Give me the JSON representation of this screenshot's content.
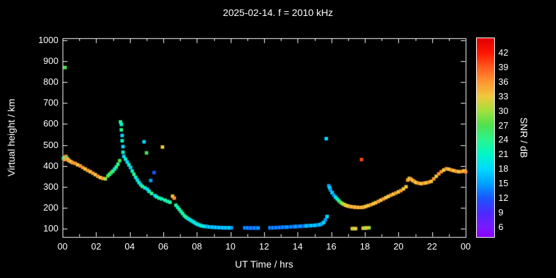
{
  "figure": {
    "background": "#000000",
    "text_color": "#ffffff"
  },
  "chart_data": {
    "type": "scatter",
    "title": "2025-02-14. f = 2010 kHz",
    "xlabel": "UT Time / hrs",
    "ylabel": "Virtual height / km",
    "colorbar_label": "SNR / dB",
    "xlim": [
      0,
      24
    ],
    "ylim": [
      60,
      1010
    ],
    "grid": false,
    "x_major_ticks": [
      0,
      2,
      4,
      6,
      8,
      10,
      12,
      14,
      16,
      18,
      20,
      22,
      24
    ],
    "x_tick_labels": [
      "00",
      "02",
      "04",
      "06",
      "08",
      "10",
      "12",
      "14",
      "16",
      "18",
      "20",
      "22",
      "00"
    ],
    "x_minor_ticks": [
      1,
      3,
      5,
      7,
      9,
      11,
      13,
      15,
      17,
      19,
      21,
      23
    ],
    "y_ticks": [
      100,
      200,
      300,
      400,
      500,
      600,
      700,
      800,
      900,
      1000
    ],
    "y_tick_labels": [
      "100",
      "200",
      "300",
      "400",
      "500",
      "600",
      "700",
      "800",
      "900",
      "1000"
    ],
    "colorbar": {
      "min": 4,
      "max": 45,
      "tick_values": [
        6,
        9,
        12,
        15,
        18,
        21,
        24,
        27,
        30,
        33,
        36,
        39,
        42
      ],
      "anchors": [
        {
          "v": 4,
          "c": "#8a00ff"
        },
        {
          "v": 6,
          "c": "#7a1aff"
        },
        {
          "v": 9,
          "c": "#4b2aff"
        },
        {
          "v": 12,
          "c": "#1a55ff"
        },
        {
          "v": 15,
          "c": "#00a0ff"
        },
        {
          "v": 18,
          "c": "#00d9ff"
        },
        {
          "v": 21,
          "c": "#00f5c8"
        },
        {
          "v": 24,
          "c": "#2af58f"
        },
        {
          "v": 27,
          "c": "#50e050"
        },
        {
          "v": 30,
          "c": "#a0e03c"
        },
        {
          "v": 33,
          "c": "#f0c83c"
        },
        {
          "v": 36,
          "c": "#ff9632"
        },
        {
          "v": 39,
          "c": "#ff5a1e"
        },
        {
          "v": 42,
          "c": "#ff1400"
        },
        {
          "v": 45,
          "c": "#dc0000"
        }
      ]
    },
    "points_schema": [
      "ut_hours",
      "virtual_height_km",
      "snr_db"
    ],
    "points": [
      [
        0.05,
        435,
        21
      ],
      [
        0.1,
        430,
        36
      ],
      [
        0.15,
        870,
        27
      ],
      [
        0.15,
        440,
        33
      ],
      [
        0.2,
        445,
        36
      ],
      [
        0.25,
        438,
        24
      ],
      [
        0.3,
        432,
        36
      ],
      [
        0.35,
        428,
        33
      ],
      [
        0.4,
        424,
        36
      ],
      [
        0.5,
        420,
        33
      ],
      [
        0.6,
        415,
        36
      ],
      [
        0.75,
        412,
        36
      ],
      [
        0.9,
        405,
        33
      ],
      [
        1.05,
        400,
        36
      ],
      [
        1.2,
        392,
        36
      ],
      [
        1.35,
        385,
        33
      ],
      [
        1.5,
        378,
        36
      ],
      [
        1.65,
        372,
        33
      ],
      [
        1.8,
        365,
        36
      ],
      [
        1.95,
        358,
        33
      ],
      [
        2.1,
        350,
        36
      ],
      [
        2.25,
        344,
        33
      ],
      [
        2.4,
        340,
        36
      ],
      [
        2.55,
        338,
        30
      ],
      [
        2.7,
        352,
        27
      ],
      [
        2.8,
        360,
        24
      ],
      [
        2.9,
        368,
        27
      ],
      [
        3.0,
        375,
        24
      ],
      [
        3.1,
        385,
        21
      ],
      [
        3.2,
        395,
        24
      ],
      [
        3.3,
        408,
        24
      ],
      [
        3.4,
        425,
        27
      ],
      [
        3.45,
        610,
        24
      ],
      [
        3.5,
        598,
        21
      ],
      [
        3.5,
        572,
        24
      ],
      [
        3.55,
        545,
        18
      ],
      [
        3.55,
        520,
        21
      ],
      [
        3.6,
        492,
        18
      ],
      [
        3.6,
        465,
        21
      ],
      [
        3.65,
        445,
        18
      ],
      [
        3.75,
        432,
        21
      ],
      [
        3.85,
        418,
        18
      ],
      [
        3.95,
        405,
        21
      ],
      [
        4.05,
        392,
        18
      ],
      [
        4.15,
        375,
        21
      ],
      [
        4.25,
        360,
        24
      ],
      [
        4.35,
        345,
        21
      ],
      [
        4.45,
        332,
        18
      ],
      [
        4.55,
        320,
        21
      ],
      [
        4.65,
        310,
        18
      ],
      [
        4.75,
        302,
        24
      ],
      [
        4.85,
        515,
        18
      ],
      [
        4.9,
        295,
        21
      ],
      [
        5.0,
        462,
        27
      ],
      [
        5.05,
        288,
        18
      ],
      [
        5.15,
        278,
        21
      ],
      [
        5.25,
        330,
        15
      ],
      [
        5.3,
        268,
        24
      ],
      [
        5.45,
        368,
        12
      ],
      [
        5.5,
        258,
        18
      ],
      [
        5.6,
        252,
        21
      ],
      [
        5.75,
        246,
        24
      ],
      [
        5.9,
        242,
        21
      ],
      [
        5.95,
        490,
        33
      ],
      [
        6.1,
        236,
        24
      ],
      [
        6.25,
        230,
        21
      ],
      [
        6.4,
        226,
        24
      ],
      [
        6.55,
        255,
        33
      ],
      [
        6.65,
        246,
        36
      ],
      [
        6.75,
        212,
        24
      ],
      [
        6.85,
        202,
        21
      ],
      [
        6.95,
        192,
        24
      ],
      [
        7.05,
        182,
        21
      ],
      [
        7.15,
        172,
        24
      ],
      [
        7.25,
        162,
        21
      ],
      [
        7.35,
        155,
        24
      ],
      [
        7.45,
        149,
        21
      ],
      [
        7.55,
        144,
        18
      ],
      [
        7.65,
        139,
        21
      ],
      [
        7.75,
        134,
        18
      ],
      [
        7.85,
        129,
        21
      ],
      [
        7.95,
        124,
        18
      ],
      [
        8.05,
        120,
        21
      ],
      [
        8.15,
        117,
        18
      ],
      [
        8.25,
        114,
        21
      ],
      [
        8.35,
        112,
        18
      ],
      [
        8.45,
        111,
        21
      ],
      [
        8.55,
        110,
        18
      ],
      [
        8.65,
        109,
        15
      ],
      [
        8.75,
        108,
        18
      ],
      [
        8.85,
        107,
        15
      ],
      [
        8.95,
        107,
        18
      ],
      [
        9.05,
        106,
        15
      ],
      [
        9.15,
        106,
        18
      ],
      [
        9.25,
        105,
        15
      ],
      [
        9.35,
        105,
        18
      ],
      [
        9.45,
        105,
        15
      ],
      [
        9.55,
        104,
        18
      ],
      [
        9.65,
        104,
        15
      ],
      [
        9.75,
        104,
        18
      ],
      [
        9.85,
        104,
        15
      ],
      [
        9.95,
        104,
        18
      ],
      [
        10.05,
        104,
        15
      ],
      [
        10.85,
        104,
        15
      ],
      [
        10.95,
        104,
        12
      ],
      [
        11.05,
        103,
        15
      ],
      [
        11.15,
        103,
        12
      ],
      [
        11.25,
        103,
        15
      ],
      [
        11.35,
        103,
        12
      ],
      [
        11.45,
        103,
        15
      ],
      [
        11.55,
        103,
        12
      ],
      [
        11.65,
        103,
        15
      ],
      [
        12.35,
        104,
        15
      ],
      [
        12.45,
        104,
        12
      ],
      [
        12.55,
        104,
        15
      ],
      [
        12.65,
        105,
        12
      ],
      [
        12.75,
        105,
        15
      ],
      [
        12.85,
        105,
        12
      ],
      [
        12.95,
        106,
        15
      ],
      [
        13.05,
        106,
        12
      ],
      [
        13.15,
        107,
        15
      ],
      [
        13.25,
        107,
        12
      ],
      [
        13.35,
        107,
        15
      ],
      [
        13.45,
        108,
        15
      ],
      [
        13.55,
        108,
        12
      ],
      [
        13.65,
        109,
        15
      ],
      [
        13.75,
        109,
        12
      ],
      [
        13.85,
        110,
        15
      ],
      [
        13.95,
        110,
        15
      ],
      [
        14.05,
        111,
        12
      ],
      [
        14.15,
        111,
        15
      ],
      [
        14.25,
        112,
        15
      ],
      [
        14.35,
        112,
        12
      ],
      [
        14.45,
        113,
        15
      ],
      [
        14.55,
        113,
        18
      ],
      [
        14.65,
        114,
        15
      ],
      [
        14.75,
        114,
        15
      ],
      [
        14.85,
        115,
        18
      ],
      [
        14.95,
        115,
        15
      ],
      [
        15.05,
        116,
        18
      ],
      [
        15.15,
        117,
        15
      ],
      [
        15.25,
        118,
        15
      ],
      [
        15.35,
        120,
        18
      ],
      [
        15.45,
        123,
        15
      ],
      [
        15.55,
        130,
        18
      ],
      [
        15.65,
        142,
        15
      ],
      [
        15.7,
        530,
        18
      ],
      [
        15.75,
        158,
        18
      ],
      [
        15.85,
        305,
        15
      ],
      [
        15.9,
        295,
        18
      ],
      [
        15.95,
        285,
        15
      ],
      [
        16.05,
        272,
        18
      ],
      [
        16.15,
        260,
        15
      ],
      [
        16.25,
        250,
        18
      ],
      [
        16.35,
        242,
        21
      ],
      [
        16.45,
        233,
        24
      ],
      [
        16.55,
        226,
        27
      ],
      [
        16.65,
        220,
        30
      ],
      [
        16.75,
        216,
        30
      ],
      [
        16.85,
        212,
        33
      ],
      [
        16.95,
        209,
        33
      ],
      [
        17.05,
        207,
        33
      ],
      [
        17.15,
        205,
        36
      ],
      [
        17.25,
        204,
        33
      ],
      [
        17.35,
        203,
        36
      ],
      [
        17.45,
        202,
        33
      ],
      [
        17.55,
        202,
        36
      ],
      [
        17.65,
        201,
        33
      ],
      [
        17.75,
        201,
        36
      ],
      [
        17.8,
        430,
        40
      ],
      [
        17.85,
        202,
        33
      ],
      [
        17.95,
        203,
        36
      ],
      [
        17.25,
        100,
        33
      ],
      [
        17.35,
        100,
        30
      ],
      [
        17.45,
        100,
        33
      ],
      [
        17.9,
        102,
        33
      ],
      [
        18.0,
        103,
        30
      ],
      [
        18.1,
        103,
        33
      ],
      [
        18.25,
        104,
        30
      ],
      [
        18.05,
        206,
        33
      ],
      [
        18.2,
        210,
        33
      ],
      [
        18.35,
        214,
        36
      ],
      [
        18.5,
        219,
        33
      ],
      [
        18.65,
        224,
        33
      ],
      [
        18.8,
        230,
        36
      ],
      [
        18.95,
        236,
        33
      ],
      [
        19.1,
        242,
        36
      ],
      [
        19.25,
        248,
        33
      ],
      [
        19.4,
        254,
        33
      ],
      [
        19.55,
        260,
        36
      ],
      [
        19.7,
        265,
        33
      ],
      [
        19.85,
        270,
        36
      ],
      [
        20.0,
        276,
        33
      ],
      [
        20.15,
        282,
        36
      ],
      [
        20.3,
        290,
        33
      ],
      [
        20.45,
        300,
        33
      ],
      [
        20.55,
        332,
        36
      ],
      [
        20.65,
        340,
        33
      ],
      [
        20.75,
        336,
        36
      ],
      [
        20.85,
        330,
        33
      ],
      [
        20.95,
        325,
        36
      ],
      [
        21.05,
        320,
        33
      ],
      [
        21.2,
        317,
        36
      ],
      [
        21.35,
        315,
        33
      ],
      [
        21.5,
        317,
        36
      ],
      [
        21.65,
        319,
        33
      ],
      [
        21.8,
        322,
        36
      ],
      [
        21.95,
        326,
        33
      ],
      [
        22.1,
        338,
        36
      ],
      [
        22.25,
        350,
        33
      ],
      [
        22.4,
        362,
        36
      ],
      [
        22.55,
        372,
        36
      ],
      [
        22.7,
        380,
        33
      ],
      [
        22.85,
        386,
        36
      ],
      [
        23.0,
        384,
        33
      ],
      [
        23.15,
        380,
        36
      ],
      [
        23.3,
        377,
        33
      ],
      [
        23.45,
        374,
        36
      ],
      [
        23.6,
        372,
        33
      ],
      [
        23.75,
        373,
        36
      ],
      [
        23.9,
        376,
        33
      ],
      [
        24.0,
        372,
        36
      ]
    ]
  }
}
